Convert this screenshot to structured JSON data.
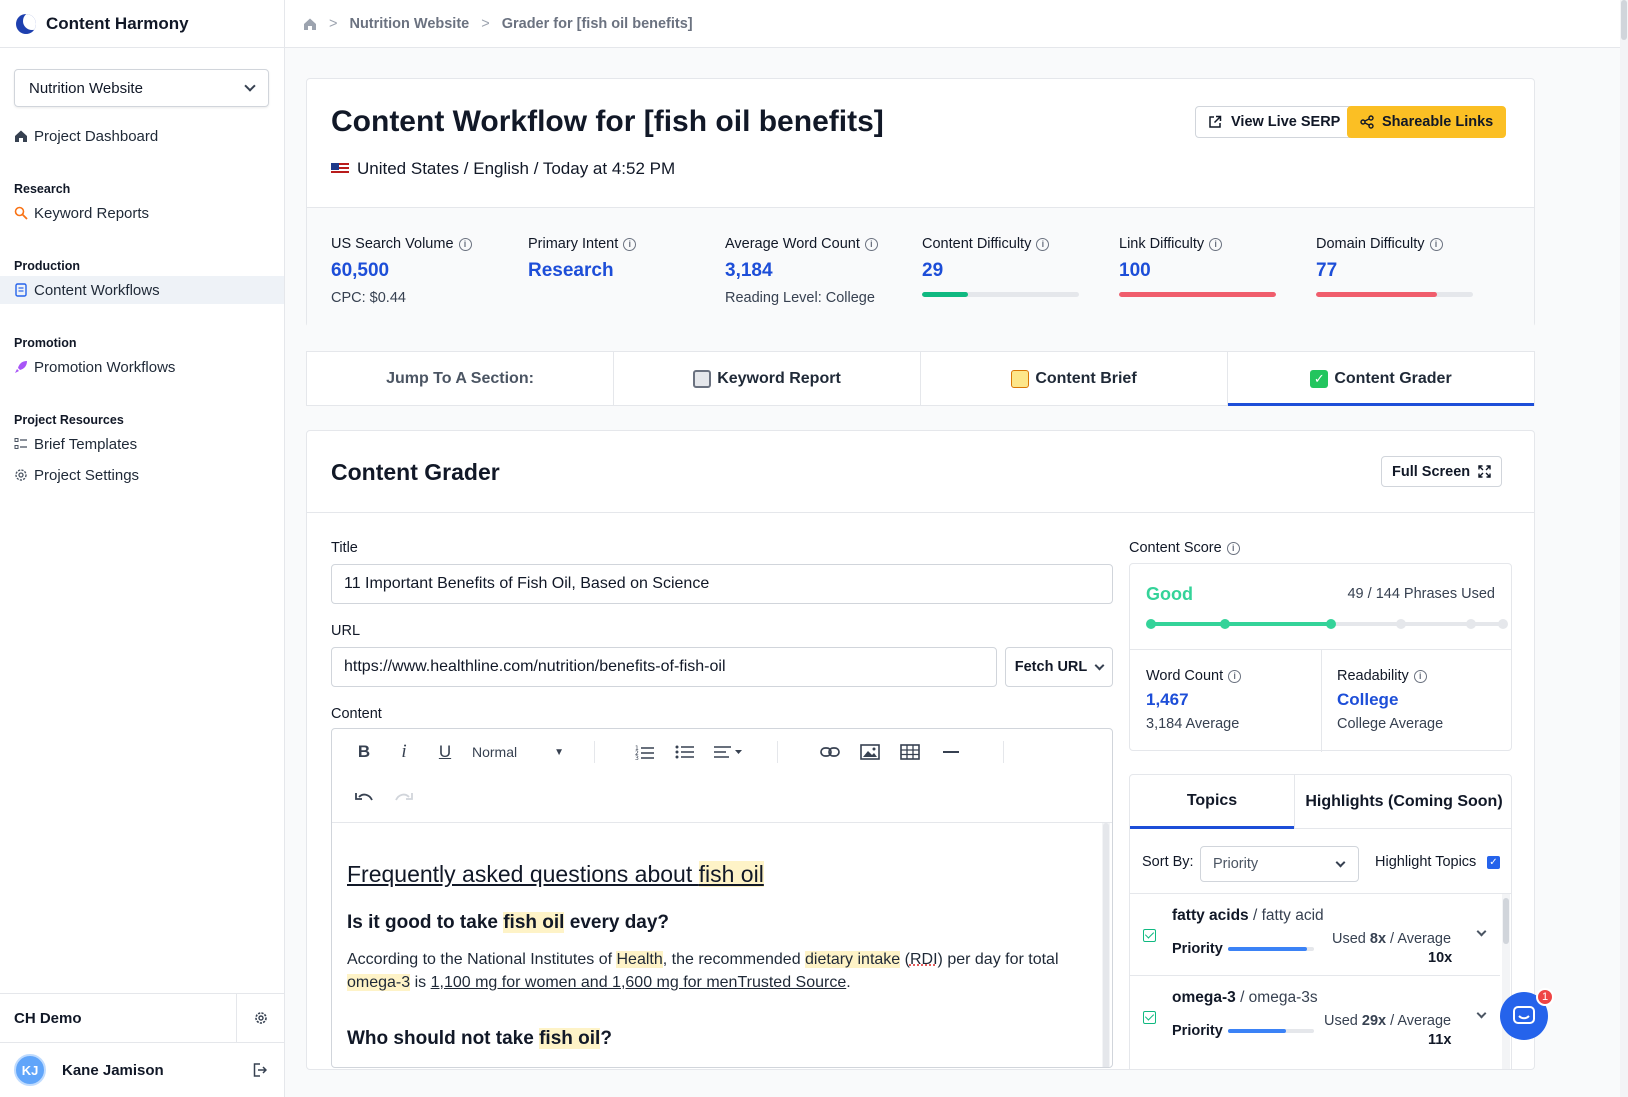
{
  "app": {
    "name": "Content Harmony"
  },
  "sidebar": {
    "project": "Nutrition Website",
    "dashboard": "Project Dashboard",
    "sections": {
      "research": "Research",
      "production": "Production",
      "promotion": "Promotion",
      "resources": "Project Resources"
    },
    "items": {
      "keyword_reports": "Keyword Reports",
      "content_workflows": "Content Workflows",
      "promotion_workflows": "Promotion Workflows",
      "brief_templates": "Brief Templates",
      "project_settings": "Project Settings"
    },
    "team": "CH Demo",
    "user": {
      "initials": "KJ",
      "name": "Kane Jamison"
    }
  },
  "breadcrumb": {
    "project": "Nutrition Website",
    "page": "Grader for [fish oil benefits]"
  },
  "header": {
    "title": "Content Workflow for [fish oil benefits]",
    "locale": "United States / English / Today at 4:52 PM",
    "view_serp": "View Live SERP",
    "shareable": "Shareable Links"
  },
  "metrics": [
    {
      "label": "US Search Volume",
      "value": "60,500",
      "sub": "CPC: $0.44"
    },
    {
      "label": "Primary Intent",
      "value": "Research",
      "sub": ""
    },
    {
      "label": "Average Word Count",
      "value": "3,184",
      "sub": "Reading Level: College"
    },
    {
      "label": "Content Difficulty",
      "value": "29",
      "fill": 0.29,
      "color": "#10b981"
    },
    {
      "label": "Link Difficulty",
      "value": "100",
      "fill": 1.0,
      "color": "#f05d6c"
    },
    {
      "label": "Domain Difficulty",
      "value": "77",
      "fill": 0.77,
      "color": "#f05d6c"
    }
  ],
  "jump": {
    "label": "Jump To A Section:",
    "keyword_report": "Keyword Report",
    "content_brief": "Content Brief",
    "content_grader": "Content Grader"
  },
  "grader": {
    "title": "Content Grader",
    "full_screen": "Full Screen",
    "title_label": "Title",
    "title_value": "11 Important Benefits of Fish Oil, Based on Science",
    "url_label": "URL",
    "url_value": "https://www.healthline.com/nutrition/benefits-of-fish-oil",
    "fetch_url": "Fetch URL",
    "content_label": "Content",
    "style_select": "Normal"
  },
  "doc": {
    "h2a": "Frequently asked questions about ",
    "h2b": "fish oil",
    "q1a": "Is it good to take ",
    "q1b": "fish oil",
    "q1c": " every day?",
    "p1a": "According to the National Institutes of ",
    "p1b": "Health",
    "p1c": ", the recommended ",
    "p1d": "dietary intake",
    "p1e": " (",
    "p1f": "RDI",
    "p1g": ") per day for total ",
    "p1h": "omega-3",
    "p1i": " is ",
    "p1j": "1,100 mg for women and 1,600 mg for menTrusted Source",
    "p1k": ".",
    "q2a": "Who should not take ",
    "q2b": "fish oil",
    "q2c": "?"
  },
  "score": {
    "label": "Content Score",
    "grade": "Good",
    "phrases": "49 / 144 Phrases Used",
    "level": 0.52,
    "word_count_label": "Word Count",
    "word_count": "1,467",
    "word_avg": "3,184 Average",
    "readability_label": "Readability",
    "readability": "College",
    "readability_avg": "College Average"
  },
  "topics": {
    "tab_topics": "Topics",
    "tab_highlights": "Highlights (Coming Soon)",
    "sort_by": "Sort By:",
    "sort_value": "Priority",
    "highlight_label": "Highlight Topics",
    "items": [
      {
        "name": "fatty acids",
        "variant": "/ fatty acid",
        "priority": "Priority",
        "used_pre": "Used ",
        "used": "8x",
        "avg_pre": " /  Average",
        "avg": "10x",
        "level": 0.92
      },
      {
        "name": "omega-3",
        "variant": "/ omega-3s",
        "priority": "Priority",
        "used_pre": "Used ",
        "used": "29x",
        "avg_pre": " /  Average",
        "avg": "11x",
        "level": 0.67
      }
    ]
  },
  "chat": {
    "badge": "1"
  },
  "colors": {
    "accent": "#1d4ed8",
    "good": "#34d399",
    "warning": "#f05d6c",
    "yellow": "#fbbf24"
  }
}
